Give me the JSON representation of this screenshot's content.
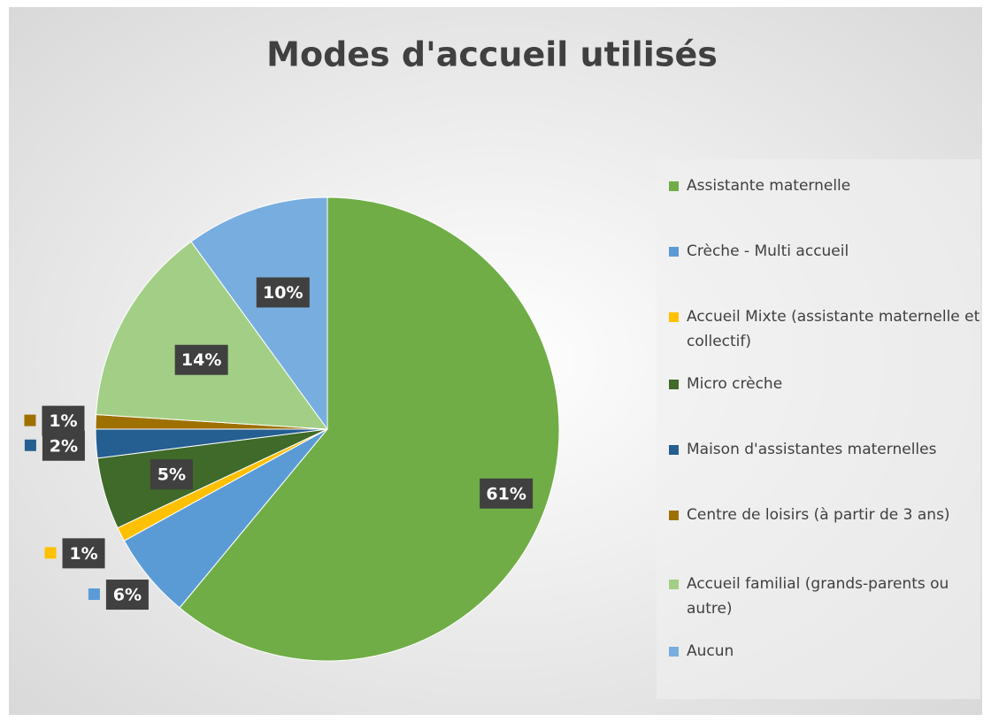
{
  "chart_data": {
    "type": "pie",
    "title": "Modes d'accueil utilisés",
    "categories": [
      "Assistante maternelle",
      "Crèche - Multi accueil",
      "Accueil Mixte (assistante maternelle et collectif)",
      "Micro crèche",
      "Maison d'assistantes maternelles",
      "Centre de loisirs (à partir de 3 ans)",
      "Accueil familial (grands-parents ou autre)",
      "Aucun"
    ],
    "values": [
      61,
      6,
      1,
      5,
      2,
      1,
      14,
      10
    ],
    "value_labels": [
      "61%",
      "6%",
      "1%",
      "5%",
      "2%",
      "1%",
      "14%",
      "10%"
    ],
    "colors": [
      "#70ad47",
      "#5b9bd5",
      "#ffc000",
      "#3f6a2a",
      "#255e91",
      "#9e7000",
      "#a2cf85",
      "#78addf"
    ],
    "legend": "right"
  }
}
